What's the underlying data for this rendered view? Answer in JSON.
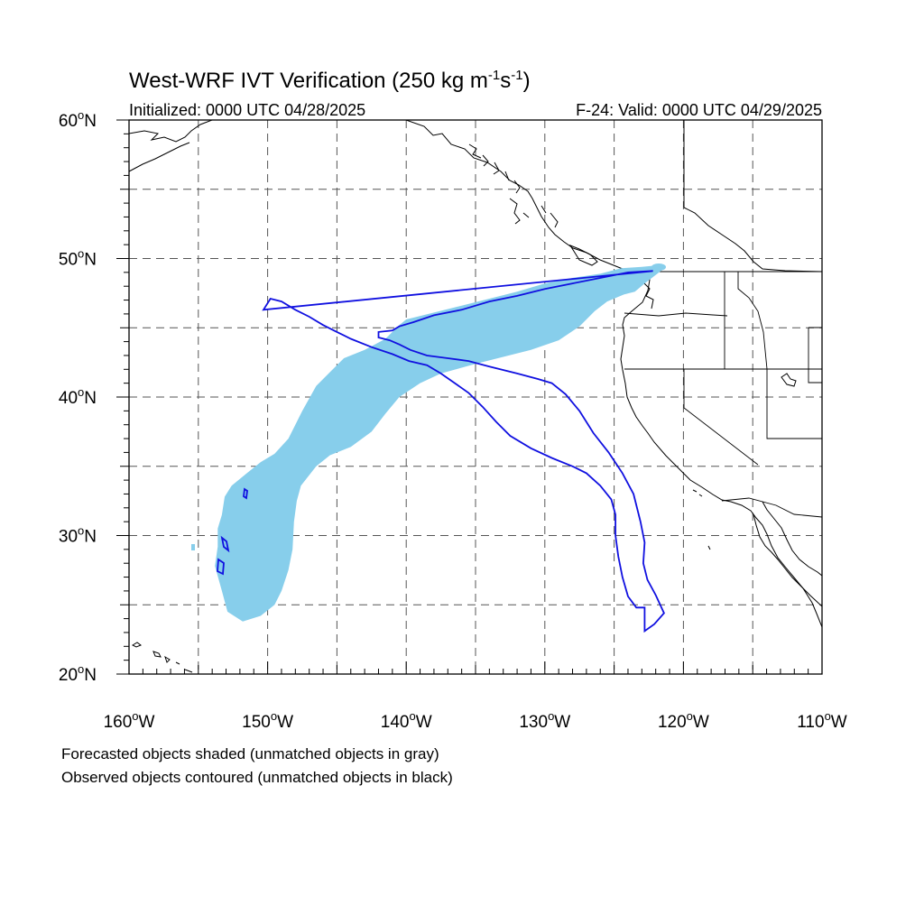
{
  "title": {
    "main": "West-WRF IVT Verification (250 kg m",
    "sup1": "-1",
    "mid": "s",
    "sup2": "-1",
    "end": ")"
  },
  "subtitle": {
    "initialized": "Initialized: 0000 UTC 04/28/2025",
    "valid": "F-24: Valid: 0000 UTC 04/29/2025"
  },
  "axes": {
    "lat_labels": [
      "20",
      "30",
      "40",
      "50",
      "60"
    ],
    "lon_labels": [
      "160",
      "150",
      "140",
      "130",
      "120",
      "110"
    ],
    "lat_suffix": "N",
    "lon_suffix": "W",
    "degree": "o",
    "lon_range": [
      -160,
      -110
    ],
    "lat_range": [
      20,
      60
    ],
    "gridlines": "dashed every 5 degrees"
  },
  "footnotes": {
    "line1": "Forecasted objects shaded (unmatched objects in gray)",
    "line2": "Observed objects contoured (unmatched objects in black)"
  },
  "colors": {
    "forecast_fill": "#87ceeb",
    "observed_contour": "#1010e0",
    "coastline": "#000000",
    "grid": "#555555"
  },
  "objects": {
    "forecast_object_shaded": [
      [
        -122,
        49.5
      ],
      [
        -123,
        49.4
      ],
      [
        -124.5,
        49.3
      ],
      [
        -126,
        48.9
      ],
      [
        -128,
        48.6
      ],
      [
        -130,
        48.2
      ],
      [
        -132,
        47.6
      ],
      [
        -134,
        47.1
      ],
      [
        -136,
        46.6
      ],
      [
        -138,
        46.1
      ],
      [
        -140,
        45.6
      ],
      [
        -140.5,
        45.2
      ],
      [
        -141.5,
        44.2
      ],
      [
        -143,
        43.4
      ],
      [
        -144.5,
        42.8
      ],
      [
        -145.5,
        41.8
      ],
      [
        -146.5,
        40.8
      ],
      [
        -147.5,
        39
      ],
      [
        -148.5,
        37
      ],
      [
        -149.5,
        35.9
      ],
      [
        -150.5,
        35.3
      ],
      [
        -151.5,
        34.5
      ],
      [
        -152.6,
        33.6
      ],
      [
        -153.1,
        32.8
      ],
      [
        -153.3,
        31.5
      ],
      [
        -153.6,
        30.5
      ],
      [
        -153.6,
        29.2
      ],
      [
        -153.8,
        27.8
      ],
      [
        -153.3,
        26
      ],
      [
        -152.9,
        24.5
      ],
      [
        -151.8,
        23.8
      ],
      [
        -150.5,
        24.2
      ],
      [
        -149.5,
        25
      ],
      [
        -149,
        26
      ],
      [
        -148.5,
        27.5
      ],
      [
        -148.2,
        29
      ],
      [
        -148.1,
        31
      ],
      [
        -147.9,
        32.5
      ],
      [
        -147.6,
        33.6
      ],
      [
        -146.5,
        35
      ],
      [
        -145.5,
        35.8
      ],
      [
        -144,
        36.4
      ],
      [
        -142.5,
        37.5
      ],
      [
        -141.5,
        38.8
      ],
      [
        -140.5,
        40
      ],
      [
        -139,
        41
      ],
      [
        -137.5,
        41.7
      ],
      [
        -135,
        42.4
      ],
      [
        -133,
        42.9
      ],
      [
        -131,
        43.4
      ],
      [
        -129,
        44.1
      ],
      [
        -127.5,
        45.1
      ],
      [
        -126.4,
        46.2
      ],
      [
        -125.5,
        46.9
      ],
      [
        -124.3,
        47.4
      ],
      [
        -123.5,
        47.6
      ],
      [
        -122.8,
        48.2
      ],
      [
        -121.5,
        49.2
      ]
    ],
    "observed_object_contour": [
      [
        -122.2,
        49.1
      ],
      [
        -124,
        49
      ],
      [
        -126,
        48.6
      ],
      [
        -128,
        48.2
      ],
      [
        -130,
        47.8
      ],
      [
        -132,
        47.3
      ],
      [
        -134,
        46.9
      ],
      [
        -136,
        46.3
      ],
      [
        -138,
        45.9
      ],
      [
        -139.5,
        45.4
      ],
      [
        -140.5,
        45.1
      ],
      [
        -141,
        44.8
      ],
      [
        -142,
        44.7
      ],
      [
        -142,
        44.3
      ],
      [
        -141.2,
        44.1
      ],
      [
        -140.5,
        43.8
      ],
      [
        -139.7,
        43.4
      ],
      [
        -138.5,
        43
      ],
      [
        -137,
        42.8
      ],
      [
        -135.5,
        42.6
      ],
      [
        -134,
        42.2
      ],
      [
        -132,
        41.7
      ],
      [
        -130.5,
        41.3
      ],
      [
        -129.5,
        41
      ],
      [
        -128.5,
        40.2
      ],
      [
        -127.5,
        39
      ],
      [
        -126.5,
        37.4
      ],
      [
        -125.4,
        36
      ],
      [
        -124.4,
        34.5
      ],
      [
        -123.6,
        33
      ],
      [
        -123.1,
        31
      ],
      [
        -122.8,
        29.5
      ],
      [
        -122.9,
        28
      ],
      [
        -122.6,
        26.8
      ],
      [
        -122,
        25.7
      ],
      [
        -121.4,
        24.4
      ],
      [
        -122.1,
        23.6
      ],
      [
        -122.8,
        23.1
      ],
      [
        -122.8,
        24.8
      ],
      [
        -123.4,
        24.8
      ],
      [
        -124,
        25.6
      ],
      [
        -124.4,
        27
      ],
      [
        -124.7,
        28.5
      ],
      [
        -124.9,
        30
      ],
      [
        -124.9,
        31.5
      ],
      [
        -125.2,
        32.6
      ],
      [
        -126,
        33.6
      ],
      [
        -127,
        34.5
      ],
      [
        -128,
        35
      ],
      [
        -129.5,
        35.6
      ],
      [
        -131,
        36.3
      ],
      [
        -132.5,
        37.2
      ],
      [
        -133.5,
        38.2
      ],
      [
        -134.5,
        39.3
      ],
      [
        -135.5,
        40.3
      ],
      [
        -136.5,
        41
      ],
      [
        -137.5,
        41.7
      ],
      [
        -138.5,
        42.3
      ],
      [
        -139.8,
        42.6
      ],
      [
        -141,
        43.1
      ],
      [
        -142.5,
        43.6
      ],
      [
        -144,
        44.2
      ],
      [
        -145,
        44.7
      ],
      [
        -146,
        45.2
      ],
      [
        -147,
        45.8
      ],
      [
        -148,
        46.3
      ],
      [
        -149,
        46.9
      ],
      [
        -149.8,
        47.1
      ],
      [
        -150.3,
        46.3
      ]
    ]
  }
}
